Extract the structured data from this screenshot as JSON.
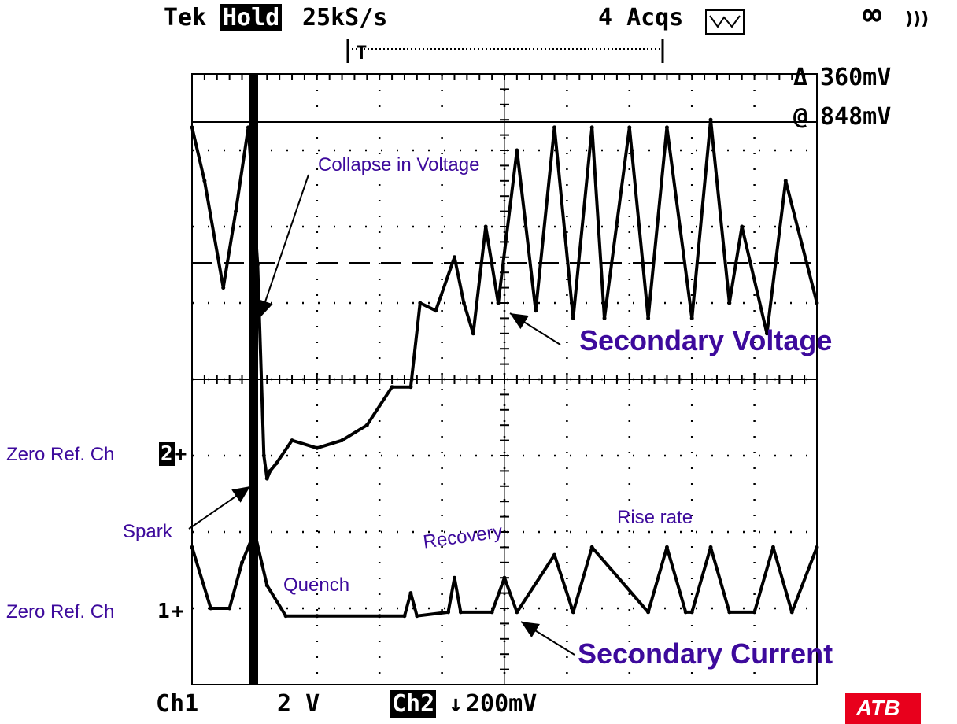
{
  "header": {
    "brand": "Tek",
    "mode": "Hold",
    "rate": "25kS/s",
    "acqs": "4 Acqs",
    "trigger_marker": "T",
    "acq_icon": "peak-detect-icon",
    "persistence_icon": "infinity-icon",
    "sound_icon": "speaker-waves-icon"
  },
  "readouts": {
    "delta": "Δ",
    "delta_value": "360mV",
    "at": "@",
    "at_value": "848mV"
  },
  "footer": {
    "ch1_label": "Ch1",
    "ch1_scale": "2 V",
    "ch2_label": "Ch2",
    "ch2_coupling": "↓",
    "ch2_scale": "200mV"
  },
  "annotations": {
    "collapse": "Collapse in Voltage",
    "secondary_voltage": "Secondary Voltage",
    "zero_ref_ch2": "Zero Ref. Ch",
    "zero_ref_ch2_marker": "2",
    "zero_ref_ch1": "Zero Ref. Ch",
    "zero_ref_ch1_marker": "1",
    "spark": "Spark",
    "recovery": "Recovery",
    "rise_rate": "Rise rate",
    "quench": "Quench",
    "secondary_current": "Secondary Current"
  },
  "colors": {
    "annotation": "#3d0a9c",
    "trace": "#000000",
    "logo": "#e8001c"
  },
  "chart_data": {
    "type": "line",
    "grid": true,
    "x_divisions": 10,
    "y_divisions": 8,
    "ylim": [
      0,
      8
    ],
    "xlim": [
      0,
      10
    ],
    "series": [
      {
        "name": "Secondary Voltage",
        "x": [
          0,
          0.2,
          0.5,
          0.7,
          0.9,
          1.05,
          1.15,
          1.2,
          1.25,
          1.35,
          1.6,
          2.0,
          2.4,
          2.8,
          3.2,
          3.5,
          3.65,
          3.9,
          4.2,
          4.35,
          4.5,
          4.7,
          4.9,
          5.2,
          5.5,
          5.8,
          6.1,
          6.4,
          6.6,
          7.0,
          7.3,
          7.6,
          8.0,
          8.3,
          8.6,
          8.8,
          9.2,
          9.5,
          10
        ],
        "y": [
          7.3,
          6.6,
          5.2,
          6.2,
          7.3,
          5.5,
          3.0,
          2.7,
          2.8,
          2.9,
          3.2,
          3.1,
          3.2,
          3.4,
          3.9,
          3.9,
          5.0,
          4.9,
          5.6,
          5.0,
          4.6,
          6.0,
          5.0,
          7.0,
          4.9,
          7.3,
          4.8,
          7.3,
          4.8,
          7.3,
          4.8,
          7.3,
          4.8,
          7.4,
          5.0,
          6.0,
          4.6,
          6.6,
          5.0
        ]
      },
      {
        "name": "Secondary Current",
        "x": [
          0,
          0.3,
          0.6,
          0.8,
          1.0,
          1.2,
          1.5,
          2.0,
          3.0,
          3.4,
          3.5,
          3.6,
          4.1,
          4.2,
          4.3,
          4.8,
          5.0,
          5.2,
          5.8,
          6.1,
          6.4,
          7.3,
          7.6,
          7.9,
          8.0,
          8.3,
          8.6,
          9.0,
          9.3,
          9.6,
          10
        ],
        "y": [
          1.8,
          1.0,
          1.0,
          1.6,
          2.0,
          1.3,
          0.9,
          0.9,
          0.9,
          0.9,
          1.2,
          0.9,
          0.95,
          1.4,
          0.95,
          0.95,
          1.4,
          0.95,
          1.7,
          0.95,
          1.8,
          0.95,
          1.8,
          0.95,
          0.95,
          1.8,
          0.95,
          0.95,
          1.8,
          0.95,
          1.8
        ]
      }
    ]
  }
}
